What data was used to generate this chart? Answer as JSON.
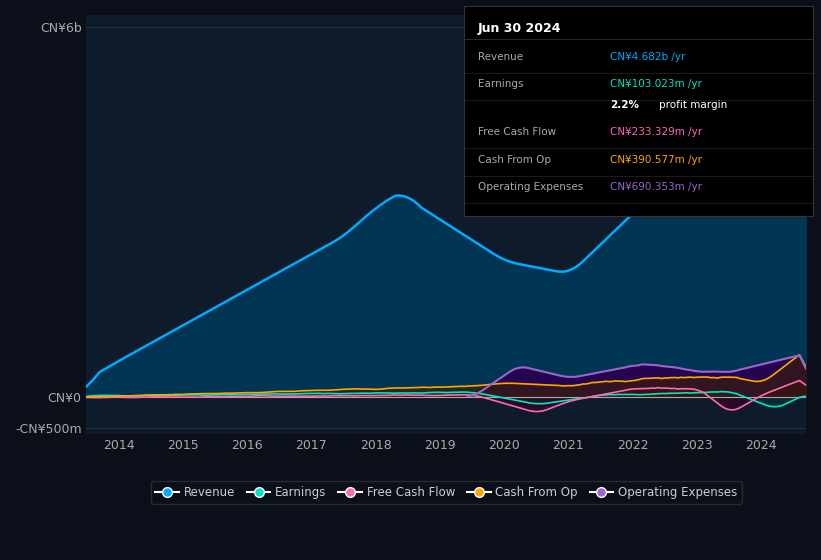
{
  "title": "Jun 30 2024",
  "bg_color": "#0a0f1a",
  "chart_bg": "#0d1b2a",
  "ylabel_top": "CN¥6b",
  "ylabel_zero": "CN¥0",
  "ylabel_neg": "-CN¥500m",
  "x_ticks": [
    2014,
    2015,
    2016,
    2017,
    2018,
    2019,
    2020,
    2021,
    2022,
    2023,
    2024
  ],
  "ylim": [
    -600,
    6200
  ],
  "series": {
    "Revenue": {
      "color": "#00aaff",
      "fill_color": "#003a5c"
    },
    "Earnings": {
      "color": "#00e5c8",
      "fill_color": "#003a3a"
    },
    "Free Cash Flow": {
      "color": "#ff69b4",
      "fill_color": "#3a0020"
    },
    "Cash From Op": {
      "color": "#ffa500",
      "fill_color": "#3a2000"
    },
    "Operating Expenses": {
      "color": "#9966cc",
      "fill_color": "#2a0050"
    }
  },
  "tooltip": {
    "bg": "#000000",
    "border": "#333333",
    "title": "Jun 30 2024",
    "title_color": "#ffffff",
    "label_color": "#aaaaaa",
    "rows": [
      {
        "label": "Revenue",
        "value": "CN¥4.682b /yr",
        "value_color": "#00aaff"
      },
      {
        "label": "Earnings",
        "value": "CN¥103.023m /yr",
        "value_color": "#00e5c8"
      },
      {
        "label": "",
        "value": "2.2% profit margin",
        "value_color": "#ffffff"
      },
      {
        "label": "Free Cash Flow",
        "value": "CN¥233.329m /yr",
        "value_color": "#ff69b4"
      },
      {
        "label": "Cash From Op",
        "value": "CN¥390.577m /yr",
        "value_color": "#ffa500"
      },
      {
        "label": "Operating Expenses",
        "value": "CN¥690.353m /yr",
        "value_color": "#9966cc"
      }
    ]
  }
}
